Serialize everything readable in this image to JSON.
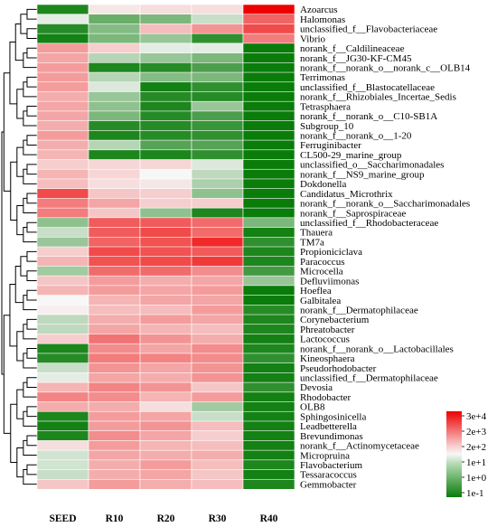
{
  "chart_data": {
    "type": "heatmap",
    "columns": [
      "SEED",
      "R10",
      "R20",
      "R30",
      "R40"
    ],
    "rows": [
      "Azoarcus",
      "Halomonas",
      "unclassified_f__Flavobacteriaceae",
      "Vibrio",
      "norank_f__Caldilineaceae",
      "norank_f__JG30-KF-CM45",
      "norank_f__norank_o__norank_c__OLB14",
      "Terrimonas",
      "unclassified_f__Blastocatellaceae",
      "norank_f__Rhizobiales_Incertae_Sedis",
      "Tetrasphaera",
      "norank_f__norank_o__C10-SB1A",
      "Subgroup_10",
      "norank_f__norank_o__1-20",
      "Ferruginibacter",
      "CL500-29_marine_group",
      "unclassified_o__Saccharimonadales",
      "norank_f__NS9_marine_group",
      "Dokdonella",
      "Candidatus_Microthrix",
      "norank_f__norank_o__Saccharimonadales",
      "norank_f__Saprospiraceae",
      "unclassified_f__Rhodobacteraceae",
      "Thauera",
      "TM7a",
      "Propioniciclava",
      "Paracoccus",
      "Microcella",
      "Defluviimonas",
      "Hoeflea",
      "Galbitalea",
      "norank_f__Dermatophilaceae",
      "Corynebacterium",
      "Phreatobacter",
      "Lactococcus",
      "norank_f__norank_o__Lactobacillales",
      "Kineosphaera",
      "Pseudorhodobacter",
      "unclassified_f__Dermatophilaceae",
      "Devosia",
      "Rhodobacter",
      "OLB8",
      "Sphingosinicella",
      "Leadbetterella",
      "Brevundimonas",
      "norank_f__Actinomycetaceae",
      "Micropruina",
      "Flavobacterium",
      "Tessaracoccus",
      "Gemmobacter"
    ],
    "values": [
      [
        -0.8,
        1.7,
        1.8,
        1.8,
        4.5
      ],
      [
        1.3,
        0.0,
        0.2,
        1.0,
        3.3
      ],
      [
        -0.7,
        0.3,
        2.2,
        2.7,
        3.6
      ],
      [
        -0.9,
        0.2,
        0.5,
        -0.6,
        3.0
      ],
      [
        2.6,
        2.0,
        1.3,
        1.3,
        -1.0
      ],
      [
        2.5,
        0.8,
        0.5,
        0.2,
        -1.0
      ],
      [
        2.6,
        -0.8,
        -0.7,
        -0.3,
        -1.0
      ],
      [
        2.6,
        0.8,
        0.3,
        0.2,
        -1.0
      ],
      [
        2.6,
        1.2,
        -0.9,
        -0.6,
        -1.0
      ],
      [
        2.4,
        0.5,
        -0.7,
        -0.7,
        -1.0
      ],
      [
        2.5,
        0.4,
        -0.8,
        0.5,
        -1.0
      ],
      [
        2.5,
        0.2,
        -0.7,
        -0.3,
        -1.0
      ],
      [
        2.4,
        -0.7,
        -0.7,
        -0.5,
        -1.0
      ],
      [
        2.6,
        -0.8,
        -0.7,
        -0.6,
        -1.0
      ],
      [
        2.4,
        0.8,
        -0.2,
        -0.2,
        -1.0
      ],
      [
        2.3,
        -0.8,
        -0.8,
        -0.6,
        -1.0
      ],
      [
        2.0,
        1.9,
        1.9,
        1.2,
        -1.0
      ],
      [
        2.3,
        1.9,
        1.5,
        0.9,
        -1.0
      ],
      [
        2.2,
        1.8,
        1.7,
        0.7,
        -1.0
      ],
      [
        3.6,
        2.1,
        2.0,
        0.4,
        -1.0
      ],
      [
        3.0,
        2.5,
        2.0,
        2.0,
        -1.0
      ],
      [
        3.0,
        2.1,
        0.4,
        -0.8,
        -1.0
      ],
      [
        0.4,
        3.4,
        3.4,
        3.2,
        0.2
      ],
      [
        1.0,
        3.4,
        3.6,
        3.2,
        -0.9
      ],
      [
        0.5,
        3.3,
        3.5,
        4.0,
        -0.6
      ],
      [
        2.0,
        3.6,
        3.5,
        3.4,
        -0.8
      ],
      [
        2.3,
        3.5,
        3.6,
        3.8,
        -0.8
      ],
      [
        0.6,
        3.2,
        3.2,
        2.8,
        -0.4
      ],
      [
        2.1,
        2.6,
        2.4,
        2.5,
        0.5
      ],
      [
        2.3,
        2.6,
        2.5,
        2.6,
        -1.0
      ],
      [
        1.5,
        2.3,
        2.5,
        2.5,
        -1.0
      ],
      [
        1.6,
        2.2,
        2.2,
        2.6,
        -0.7
      ],
      [
        0.9,
        2.4,
        2.6,
        2.5,
        -0.8
      ],
      [
        0.9,
        2.5,
        2.3,
        2.2,
        -0.8
      ],
      [
        2.0,
        3.1,
        2.7,
        2.4,
        -0.9
      ],
      [
        -0.8,
        2.8,
        2.5,
        2.8,
        -0.8
      ],
      [
        -0.7,
        3.0,
        2.9,
        2.8,
        -0.6
      ],
      [
        1.0,
        2.7,
        2.5,
        2.7,
        -0.9
      ],
      [
        1.3,
        2.5,
        2.4,
        2.7,
        -0.9
      ],
      [
        2.3,
        2.9,
        2.7,
        2.1,
        -0.6
      ],
      [
        2.9,
        2.8,
        2.3,
        2.6,
        -0.9
      ],
      [
        2.4,
        2.4,
        1.8,
        0.6,
        -0.9
      ],
      [
        -0.8,
        2.6,
        2.5,
        1.0,
        -0.9
      ],
      [
        -0.9,
        2.6,
        2.7,
        2.2,
        -0.9
      ],
      [
        -0.8,
        2.8,
        2.5,
        2.0,
        -0.9
      ],
      [
        1.8,
        2.6,
        2.3,
        2.2,
        -0.9
      ],
      [
        1.1,
        2.5,
        2.4,
        2.4,
        -0.9
      ],
      [
        1.1,
        2.4,
        2.6,
        2.2,
        -0.8
      ],
      [
        1.0,
        2.4,
        2.5,
        2.1,
        -0.9
      ],
      [
        2.1,
        2.6,
        2.4,
        2.2,
        -0.8
      ]
    ],
    "color_scale": {
      "ticks": [
        4,
        3,
        2,
        1,
        0,
        -1
      ],
      "tick_labels": [
        "3e+4",
        "2e+3",
        "2e+2",
        "1e+1",
        "1e+0",
        "1e-1"
      ],
      "low_color": "#0a7c0a",
      "mid_color": "#f7f7f7",
      "high_color": "#ee0000"
    },
    "dendrogram": "row clustering tree on the left",
    "legend_position": "bottom-right"
  }
}
